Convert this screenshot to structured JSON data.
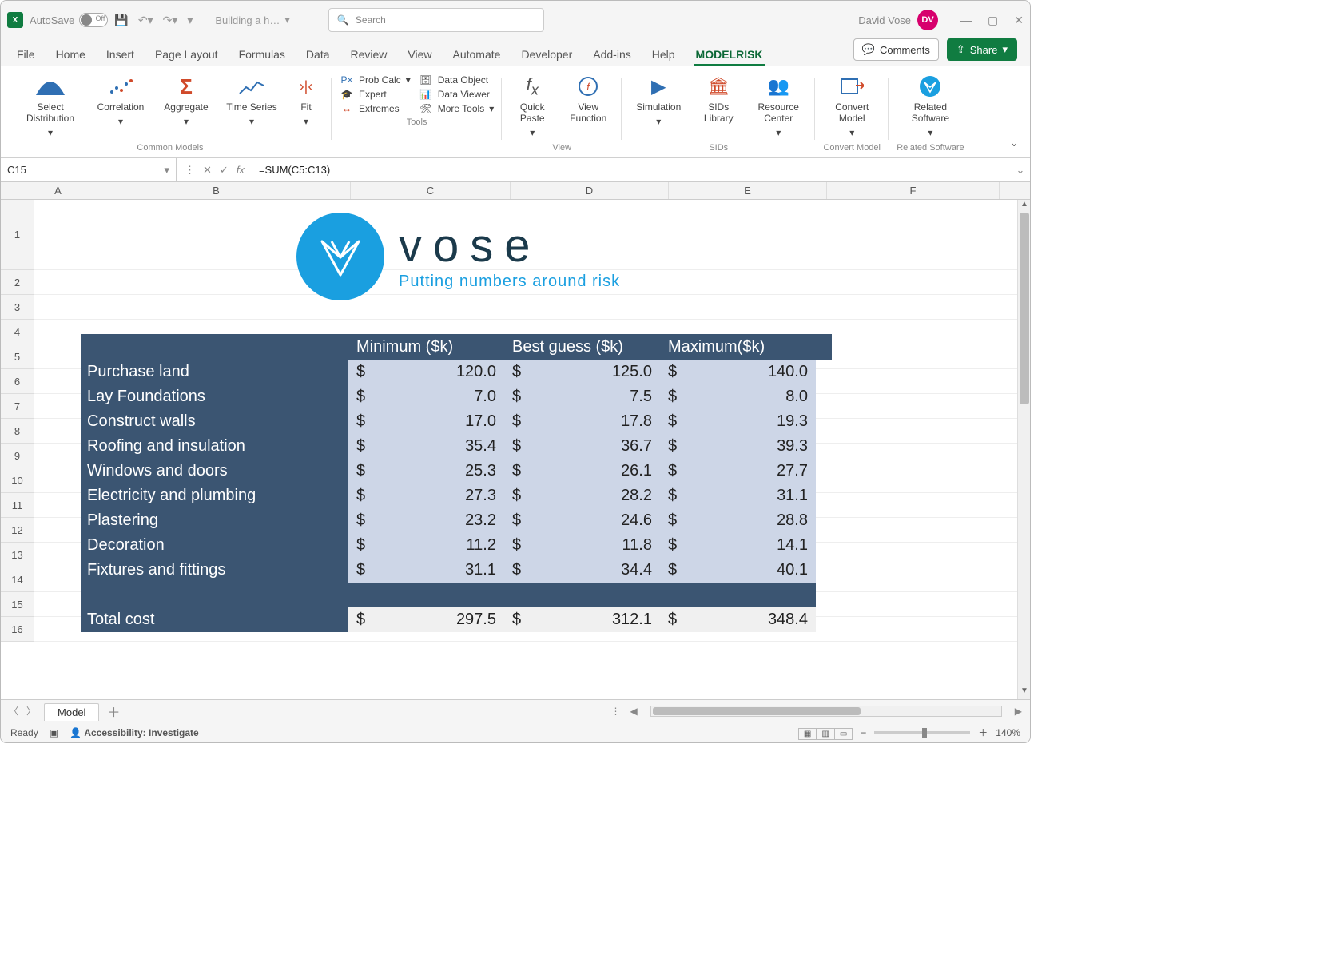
{
  "title": {
    "autosave_label": "AutoSave",
    "autosave_state": "Off",
    "filename": "Building a h…",
    "search_placeholder": "Search",
    "username": "David Vose",
    "initials": "DV"
  },
  "tabs": {
    "items": [
      "File",
      "Home",
      "Insert",
      "Page Layout",
      "Formulas",
      "Data",
      "Review",
      "View",
      "Automate",
      "Developer",
      "Add-ins",
      "Help",
      "MODELRISK"
    ],
    "active": "MODELRISK",
    "comments": "Comments",
    "share": "Share"
  },
  "ribbon": {
    "groups": [
      {
        "label": "Common Models",
        "items": [
          "Select Distribution",
          "Correlation",
          "Aggregate",
          "Time Series",
          "Fit"
        ]
      },
      {
        "label": "Tools",
        "items": [
          "Prob Calc",
          "Data Object",
          "Expert",
          "Data Viewer",
          "Extremes",
          "More Tools"
        ]
      },
      {
        "label": "View",
        "items": [
          "Quick Paste",
          "View Function"
        ]
      },
      {
        "label": "SIDs",
        "items": [
          "Simulation",
          "SIDs Library",
          "Resource Center"
        ]
      },
      {
        "label": "Convert Model",
        "items": [
          "Convert Model"
        ]
      },
      {
        "label": "Related Software",
        "items": [
          "Related Software"
        ]
      }
    ]
  },
  "formula_bar": {
    "cell": "C15",
    "formula": "=SUM(C5:C13)"
  },
  "columns": {
    "A": 60,
    "B": 336,
    "C": 200,
    "D": 198,
    "E": 198,
    "F": 216
  },
  "row_headers": [
    "1",
    "2",
    "3",
    "4",
    "5",
    "6",
    "7",
    "8",
    "9",
    "10",
    "11",
    "12",
    "13",
    "14",
    "15",
    "16"
  ],
  "logo": {
    "wordmark": "vose",
    "tagline": "Putting numbers around risk",
    "circle_color": "#1a9fe0",
    "text_color": "#1b3a4b"
  },
  "table": {
    "header_bg": "#3b5572",
    "body_bg": "#cdd6e7",
    "total_bg": "#f0f0f0",
    "currency": "$",
    "columns": [
      "Minimum ($k)",
      "Best guess ($k)",
      "Maximum($k)"
    ],
    "rows": [
      {
        "label": "Purchase land",
        "min": "120.0",
        "best": "125.0",
        "max": "140.0"
      },
      {
        "label": "Lay Foundations",
        "min": "7.0",
        "best": "7.5",
        "max": "8.0"
      },
      {
        "label": "Construct walls",
        "min": "17.0",
        "best": "17.8",
        "max": "19.3"
      },
      {
        "label": "Roofing and insulation",
        "min": "35.4",
        "best": "36.7",
        "max": "39.3"
      },
      {
        "label": "Windows and doors",
        "min": "25.3",
        "best": "26.1",
        "max": "27.7"
      },
      {
        "label": "Electricity and plumbing",
        "min": "27.3",
        "best": "28.2",
        "max": "31.1"
      },
      {
        "label": "Plastering",
        "min": "23.2",
        "best": "24.6",
        "max": "28.8"
      },
      {
        "label": "Decoration",
        "min": "11.2",
        "best": "11.8",
        "max": "14.1"
      },
      {
        "label": "Fixtures and fittings",
        "min": "31.1",
        "best": "34.4",
        "max": "40.1"
      }
    ],
    "total": {
      "label": "Total cost",
      "min": "297.5",
      "best": "312.1",
      "max": "348.4"
    }
  },
  "sheet": {
    "name": "Model"
  },
  "status": {
    "ready": "Ready",
    "accessibility": "Accessibility: Investigate",
    "zoom": "140%"
  }
}
